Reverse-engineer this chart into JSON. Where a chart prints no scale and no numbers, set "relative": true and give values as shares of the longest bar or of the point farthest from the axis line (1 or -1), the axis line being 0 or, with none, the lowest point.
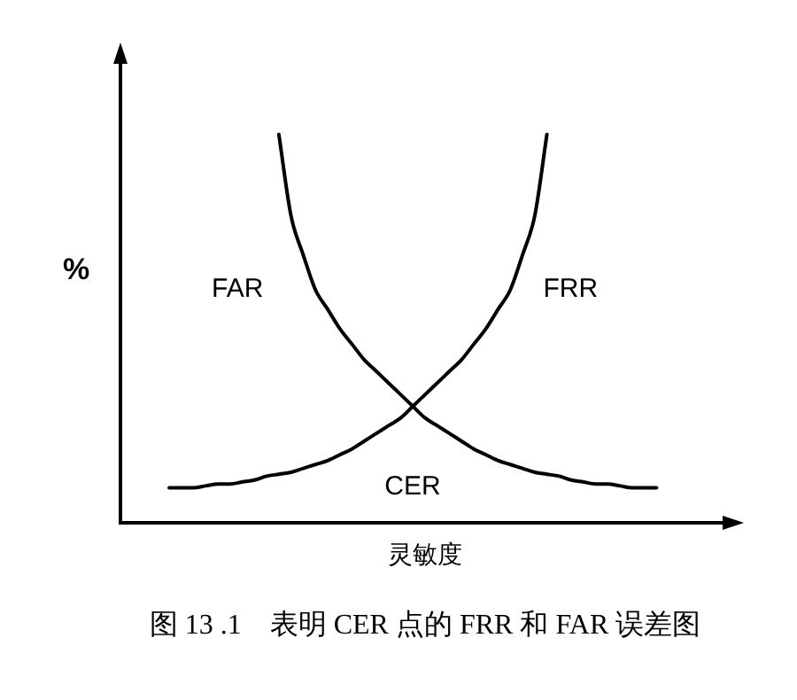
{
  "chart_data": {
    "type": "line",
    "relative": true,
    "title": "图 13 .1　表明 CER 点的 FRR 和 FAR 误差图",
    "xlabel": "灵敏度",
    "ylabel": "%",
    "annotations": [
      "CER"
    ],
    "legend": false,
    "marker": "none",
    "grid": false,
    "tick_labels": false,
    "categories": [
      null,
      null,
      null,
      null,
      null,
      null,
      null,
      null,
      null,
      null,
      null,
      null,
      null,
      null,
      null,
      null,
      null,
      null,
      null,
      null,
      null,
      null,
      null,
      null,
      null,
      null,
      null,
      null,
      null,
      null,
      null,
      null,
      null,
      null,
      null,
      null,
      null,
      null,
      null,
      null,
      null,
      null,
      null,
      null,
      null,
      null,
      null,
      null,
      null,
      null,
      null
    ],
    "series": [
      {
        "name": "FAR",
        "color": "#000000",
        "values": [
          null,
          null,
          null,
          null,
          null,
          null,
          null,
          null,
          null,
          null,
          null,
          null,
          null,
          1.0,
          0.79,
          0.69,
          0.6,
          0.55,
          0.5,
          0.46,
          0.42,
          0.39,
          0.36,
          0.33,
          0.3,
          0.27,
          0.25,
          0.23,
          0.21,
          0.19,
          0.175,
          0.16,
          0.15,
          0.14,
          0.13,
          0.125,
          0.12,
          0.11,
          0.105,
          0.1,
          0.1,
          0.095,
          0.09,
          0.09,
          0.09,
          null,
          null,
          null,
          null,
          null,
          null
        ]
      },
      {
        "name": "FRR",
        "color": "#000000",
        "values": [
          null,
          null,
          null,
          null,
          0.09,
          0.09,
          0.09,
          0.095,
          0.1,
          0.1,
          0.105,
          0.11,
          0.12,
          0.125,
          0.13,
          0.14,
          0.15,
          0.16,
          0.175,
          0.19,
          0.21,
          0.23,
          0.25,
          0.27,
          0.3,
          0.33,
          0.36,
          0.39,
          0.42,
          0.46,
          0.5,
          0.55,
          0.6,
          0.69,
          0.79,
          1.0,
          null,
          null,
          null,
          null,
          null,
          null,
          null,
          null,
          null,
          null,
          null,
          null,
          null,
          null,
          null
        ]
      }
    ]
  }
}
